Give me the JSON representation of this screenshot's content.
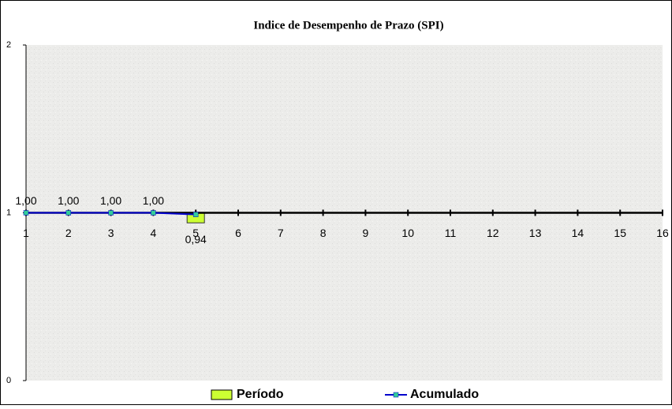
{
  "chart_data": {
    "type": "bar_line",
    "title": "Indice de Desempenho de Prazo (SPI)",
    "categories": [
      "1",
      "2",
      "3",
      "4",
      "5",
      "6",
      "7",
      "8",
      "9",
      "10",
      "11",
      "12",
      "13",
      "14",
      "15",
      "16"
    ],
    "series": [
      {
        "name": "Período",
        "type": "bar",
        "color": "#ccff33",
        "values": [
          1.0,
          1.0,
          1.0,
          1.0,
          0.94,
          null,
          null,
          null,
          null,
          null,
          null,
          null,
          null,
          null,
          null,
          null
        ],
        "value_labels": [
          "1,00",
          "1,00",
          "1,00",
          "1,00",
          "0,94",
          null,
          null,
          null,
          null,
          null,
          null,
          null,
          null,
          null,
          null,
          null
        ]
      },
      {
        "name": "Acumulado",
        "type": "line",
        "color": "#0000cc",
        "marker_color": "#33cc99",
        "values": [
          1.0,
          1.0,
          1.0,
          1.0,
          0.99,
          null,
          null,
          null,
          null,
          null,
          null,
          null,
          null,
          null,
          null,
          null
        ]
      }
    ],
    "ylim": [
      0,
      2
    ],
    "yticks": [
      0,
      1,
      2
    ],
    "x_axis_crosses": 1,
    "legend": "bottom"
  }
}
